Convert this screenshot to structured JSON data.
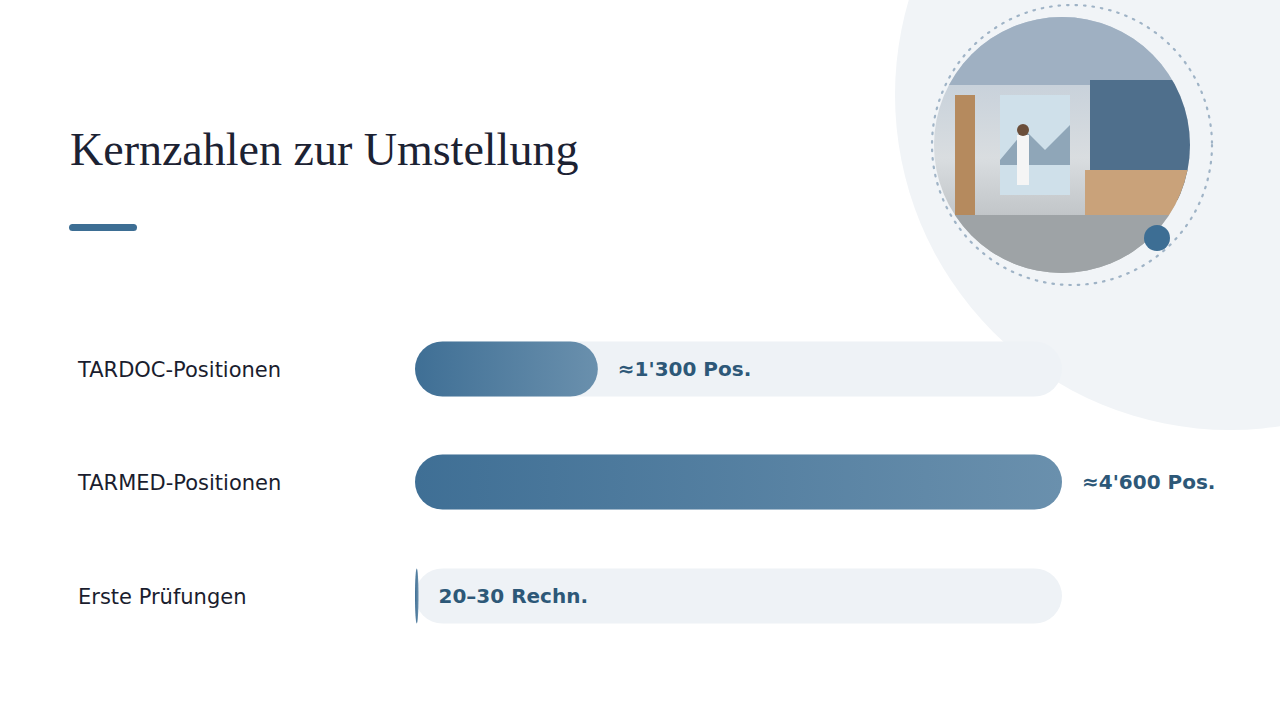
{
  "chart_data": {
    "type": "bar",
    "title": "Kernzahlen zur Umstellung",
    "orientation": "horizontal",
    "categories": [
      "TARDOC-Positionen",
      "TARMED-Positionen",
      "Erste Prüfungen"
    ],
    "values": [
      1300,
      4600,
      25
    ],
    "value_labels": [
      "≈1'300 Pos.",
      "≈4'600 Pos.",
      "20–30 Rechn."
    ],
    "color": "#3f6f95",
    "xlim": [
      0,
      4600
    ],
    "data_labels": true,
    "tick_labels": false,
    "grid": false
  }
}
